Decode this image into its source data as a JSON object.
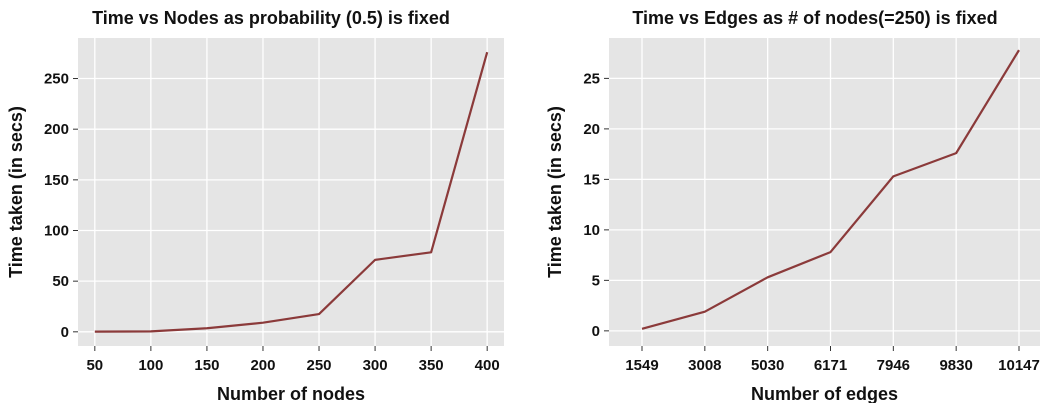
{
  "chart_data": [
    {
      "type": "line",
      "title": "Time vs Nodes as probability (0.5) is fixed",
      "xlabel": "Number of nodes",
      "ylabel": "Time taken (in secs)",
      "x": [
        50,
        100,
        150,
        200,
        250,
        300,
        350,
        400
      ],
      "x_tick_labels": [
        "50",
        "100",
        "150",
        "200",
        "250",
        "300",
        "350",
        "400"
      ],
      "series": [
        {
          "values": [
            0.2,
            0.4,
            3.5,
            9,
            17.5,
            71,
            78.5,
            276
          ]
        }
      ],
      "yticks": [
        0,
        50,
        100,
        150,
        200,
        250
      ],
      "ylim": [
        -14,
        290
      ],
      "xlim": [
        35,
        415
      ],
      "grid": true,
      "line_color": "#8b3a3a"
    },
    {
      "type": "line",
      "title": "Time vs Edges as # of nodes(=250) is fixed",
      "xlabel": "Number of edges",
      "ylabel": "Time taken (in secs)",
      "x": [
        "1549",
        "3008",
        "5030",
        "6171",
        "7946",
        "9830",
        "10147"
      ],
      "x_tick_labels": [
        "1549",
        "3008",
        "5030",
        "6171",
        "7946",
        "9830",
        "10147"
      ],
      "series": [
        {
          "values": [
            0.2,
            1.9,
            5.3,
            7.8,
            15.3,
            17.6,
            27.8
          ]
        }
      ],
      "yticks": [
        0,
        5,
        10,
        15,
        20,
        25
      ],
      "ylim": [
        -1.5,
        29
      ],
      "grid": true,
      "line_color": "#8b3a3a"
    }
  ]
}
